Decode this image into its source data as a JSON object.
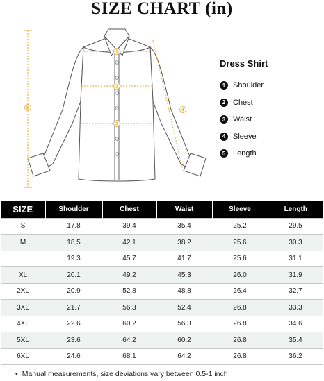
{
  "title": "SIZE CHART (in)",
  "legend": {
    "title": "Dress Shirt",
    "items": [
      {
        "num": "1",
        "label": "Shoulder"
      },
      {
        "num": "2",
        "label": "Chest"
      },
      {
        "num": "3",
        "label": "Waist"
      },
      {
        "num": "4",
        "label": "Sleeve"
      },
      {
        "num": "5",
        "label": "Length"
      }
    ]
  },
  "diagram": {
    "markers": {
      "shoulder": "1",
      "chest": "2",
      "waist": "3",
      "sleeve": "4",
      "length": "5"
    },
    "accent_color": "#e3a92a"
  },
  "table": {
    "headers": [
      "SIZE",
      "Shoulder",
      "Chest",
      "Waist",
      "Sleeve",
      "Length"
    ],
    "rows": [
      [
        "S",
        "17.8",
        "39.4",
        "35.4",
        "25.2",
        "29.5"
      ],
      [
        "M",
        "18.5",
        "42.1",
        "38.2",
        "25.6",
        "30.3"
      ],
      [
        "L",
        "19.3",
        "45.7",
        "41.7",
        "25.6",
        "31.1"
      ],
      [
        "XL",
        "20.1",
        "49.2",
        "45.3",
        "26.0",
        "31.9"
      ],
      [
        "2XL",
        "20.9",
        "52.8",
        "48.8",
        "26.4",
        "32.7"
      ],
      [
        "3XL",
        "21.7",
        "56.3",
        "52.4",
        "26.8",
        "33.3"
      ],
      [
        "4XL",
        "22.6",
        "60.2",
        "56.3",
        "26.8",
        "34.6"
      ],
      [
        "5XL",
        "23.6",
        "64.2",
        "60.2",
        "26.8",
        "35.4"
      ],
      [
        "6XL",
        "24.6",
        "68.1",
        "64.2",
        "26.8",
        "36.2"
      ]
    ]
  },
  "note": {
    "bullet": "•",
    "text": "Manual measurements, size deviations vary between 0.5-1 inch"
  }
}
